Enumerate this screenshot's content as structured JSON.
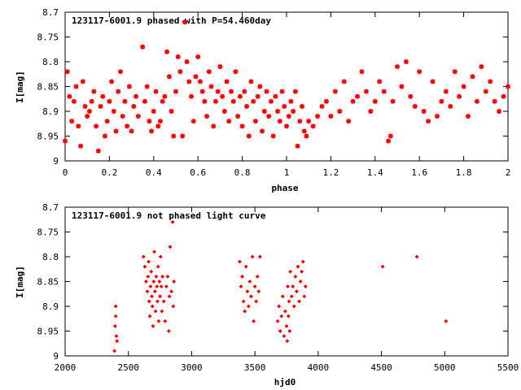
{
  "chart_data": [
    {
      "type": "scatter",
      "title": "123117-6001.9 phased with P=54.460day",
      "xlabel": "phase",
      "ylabel": "I[mag]",
      "xlim": [
        0,
        2
      ],
      "ylim": [
        8.7,
        9
      ],
      "y_inverted": true,
      "xticks": [
        0,
        0.2,
        0.4,
        0.6,
        0.8,
        1,
        1.2,
        1.4,
        1.6,
        1.8,
        2
      ],
      "xtick_labels": [
        "0",
        "0.2",
        "0.4",
        "0.6",
        "0.8",
        "1",
        "1.2",
        "1.4",
        "1.6",
        "1.8",
        "2"
      ],
      "yticks": [
        8.7,
        8.75,
        8.8,
        8.85,
        8.9,
        8.95,
        9
      ],
      "ytick_labels": [
        "8.7",
        "8.75",
        "8.8",
        "8.85",
        "8.9",
        "8.95",
        "9"
      ],
      "grid": false,
      "color": "#ff0000",
      "marker": "star",
      "series": [
        {
          "x": [
            0.0,
            0.01,
            0.02,
            0.03,
            0.04,
            0.05,
            0.06,
            0.07,
            0.08,
            0.09,
            0.1,
            0.11,
            0.12,
            0.13,
            0.14,
            0.15,
            0.16,
            0.17,
            0.18,
            0.19,
            0.2,
            0.21,
            0.22,
            0.23,
            0.24,
            0.25,
            0.26,
            0.27,
            0.28,
            0.29,
            0.3,
            0.31,
            0.32,
            0.33,
            0.35,
            0.36,
            0.37,
            0.38,
            0.39,
            0.4,
            0.41,
            0.42,
            0.43,
            0.44,
            0.45,
            0.46,
            0.47,
            0.48,
            0.49,
            0.5,
            0.51,
            0.52,
            0.53,
            0.54,
            0.55,
            0.56,
            0.57,
            0.58,
            0.59,
            0.6,
            0.61,
            0.62,
            0.63,
            0.64,
            0.65,
            0.66,
            0.67,
            0.68,
            0.69,
            0.7,
            0.71,
            0.72,
            0.73,
            0.74,
            0.75,
            0.76,
            0.77,
            0.78,
            0.79,
            0.8,
            0.81,
            0.82,
            0.83,
            0.84,
            0.85,
            0.86,
            0.87,
            0.88,
            0.89,
            0.9,
            0.91,
            0.92,
            0.93,
            0.94,
            0.95,
            0.96,
            0.97,
            0.98,
            0.99,
            1.0,
            1.01,
            1.02,
            1.03,
            1.04,
            1.05,
            1.06,
            1.07,
            1.08,
            1.09,
            1.1,
            1.12,
            1.14,
            1.16,
            1.18,
            1.2,
            1.22,
            1.24,
            1.26,
            1.28,
            1.3,
            1.32,
            1.34,
            1.36,
            1.38,
            1.4,
            1.42,
            1.44,
            1.46,
            1.47,
            1.48,
            1.5,
            1.52,
            1.54,
            1.56,
            1.58,
            1.6,
            1.62,
            1.64,
            1.66,
            1.68,
            1.7,
            1.72,
            1.74,
            1.76,
            1.78,
            1.8,
            1.82,
            1.84,
            1.86,
            1.88,
            1.9,
            1.92,
            1.94,
            1.96,
            1.98,
            2.0
          ],
          "y": [
            8.96,
            8.82,
            8.87,
            8.92,
            8.88,
            8.85,
            8.93,
            8.97,
            8.84,
            8.89,
            8.91,
            8.9,
            8.88,
            8.86,
            8.93,
            8.98,
            8.89,
            8.87,
            8.95,
            8.92,
            8.88,
            8.84,
            8.9,
            8.94,
            8.86,
            8.82,
            8.91,
            8.88,
            8.93,
            8.85,
            8.94,
            8.89,
            8.87,
            8.91,
            8.77,
            8.88,
            8.85,
            8.92,
            8.94,
            8.9,
            8.86,
            8.93,
            8.92,
            8.88,
            8.87,
            8.78,
            8.83,
            8.9,
            8.95,
            8.86,
            8.79,
            8.82,
            8.95,
            8.72,
            8.8,
            8.84,
            8.87,
            8.92,
            8.83,
            8.79,
            8.84,
            8.86,
            8.88,
            8.91,
            8.82,
            8.85,
            8.93,
            8.88,
            8.86,
            8.81,
            8.87,
            8.9,
            8.84,
            8.92,
            8.86,
            8.88,
            8.82,
            8.91,
            8.87,
            8.93,
            8.86,
            8.89,
            8.95,
            8.84,
            8.88,
            8.92,
            8.87,
            8.85,
            8.94,
            8.9,
            8.86,
            8.91,
            8.88,
            8.95,
            8.87,
            8.9,
            8.92,
            8.86,
            8.89,
            8.93,
            8.91,
            8.88,
            8.9,
            8.86,
            8.97,
            8.92,
            8.89,
            8.94,
            8.95,
            8.92,
            8.93,
            8.91,
            8.89,
            8.88,
            8.91,
            8.86,
            8.9,
            8.84,
            8.92,
            8.88,
            8.87,
            8.82,
            8.86,
            8.9,
            8.88,
            8.84,
            8.86,
            8.96,
            8.95,
            8.88,
            8.81,
            8.85,
            8.8,
            8.87,
            8.89,
            8.82,
            8.9,
            8.92,
            8.84,
            8.91,
            8.88,
            8.86,
            8.89,
            8.82,
            8.87,
            8.85,
            8.91,
            8.83,
            8.88,
            8.81,
            8.86,
            8.84,
            8.88,
            8.9,
            8.87,
            8.85
          ]
        }
      ]
    },
    {
      "type": "scatter",
      "title": "123117-6001.9 not phased light curve",
      "xlabel": "hjd0",
      "ylabel": "I[mag]",
      "xlim": [
        2000,
        5500
      ],
      "ylim": [
        8.7,
        9
      ],
      "y_inverted": true,
      "xticks": [
        2000,
        2500,
        3000,
        3500,
        4000,
        4500,
        5000,
        5500
      ],
      "xtick_labels": [
        "2000",
        "2500",
        "3000",
        "3500",
        "4000",
        "4500",
        "5000",
        "5500"
      ],
      "yticks": [
        8.7,
        8.75,
        8.8,
        8.85,
        8.9,
        8.95,
        9
      ],
      "ytick_labels": [
        "8.7",
        "8.75",
        "8.8",
        "8.85",
        "8.9",
        "8.95",
        "9"
      ],
      "grid": false,
      "color": "#ff0000",
      "marker": "diamond",
      "series": [
        {
          "x": [
            2390,
            2395,
            2400,
            2400,
            2405,
            2410,
            2620,
            2630,
            2640,
            2650,
            2655,
            2660,
            2665,
            2670,
            2675,
            2680,
            2685,
            2690,
            2695,
            2700,
            2705,
            2710,
            2715,
            2720,
            2725,
            2730,
            2735,
            2740,
            2745,
            2750,
            2755,
            2760,
            2765,
            2770,
            2780,
            2790,
            2800,
            2810,
            2820,
            2825,
            2830,
            2840,
            2850,
            2855,
            2860,
            3380,
            3390,
            3400,
            3410,
            3420,
            3430,
            3440,
            3450,
            3460,
            3470,
            3480,
            3490,
            3500,
            3510,
            3520,
            3530,
            3540,
            3680,
            3690,
            3700,
            3710,
            3720,
            3730,
            3740,
            3750,
            3755,
            3760,
            3765,
            3770,
            3775,
            3780,
            3790,
            3800,
            3810,
            3820,
            3830,
            3840,
            3850,
            3860,
            3870,
            3880,
            3890,
            3900,
            4510,
            4780,
            5010
          ],
          "y": [
            8.99,
            8.94,
            8.9,
            8.92,
            8.96,
            8.97,
            8.8,
            8.82,
            8.85,
            8.87,
            8.84,
            8.81,
            8.89,
            8.92,
            8.86,
            8.83,
            8.88,
            8.9,
            8.94,
            8.85,
            8.79,
            8.87,
            8.91,
            8.84,
            8.86,
            8.89,
            8.82,
            8.93,
            8.85,
            8.88,
            8.8,
            8.86,
            8.91,
            8.84,
            8.89,
            8.93,
            8.86,
            8.84,
            8.95,
            8.88,
            8.78,
            8.87,
            8.73,
            8.9,
            8.85,
            8.81,
            8.86,
            8.84,
            8.89,
            8.91,
            8.82,
            8.87,
            8.9,
            8.85,
            8.88,
            8.8,
            8.93,
            8.86,
            8.89,
            8.84,
            8.87,
            8.8,
            8.93,
            8.9,
            8.95,
            8.92,
            8.88,
            8.96,
            8.91,
            8.94,
            8.97,
            8.86,
            8.92,
            8.89,
            8.95,
            8.83,
            8.88,
            8.86,
            8.9,
            8.84,
            8.87,
            8.82,
            8.89,
            8.85,
            8.83,
            8.81,
            8.88,
            8.86,
            8.82,
            8.8,
            8.93
          ]
        }
      ]
    }
  ]
}
